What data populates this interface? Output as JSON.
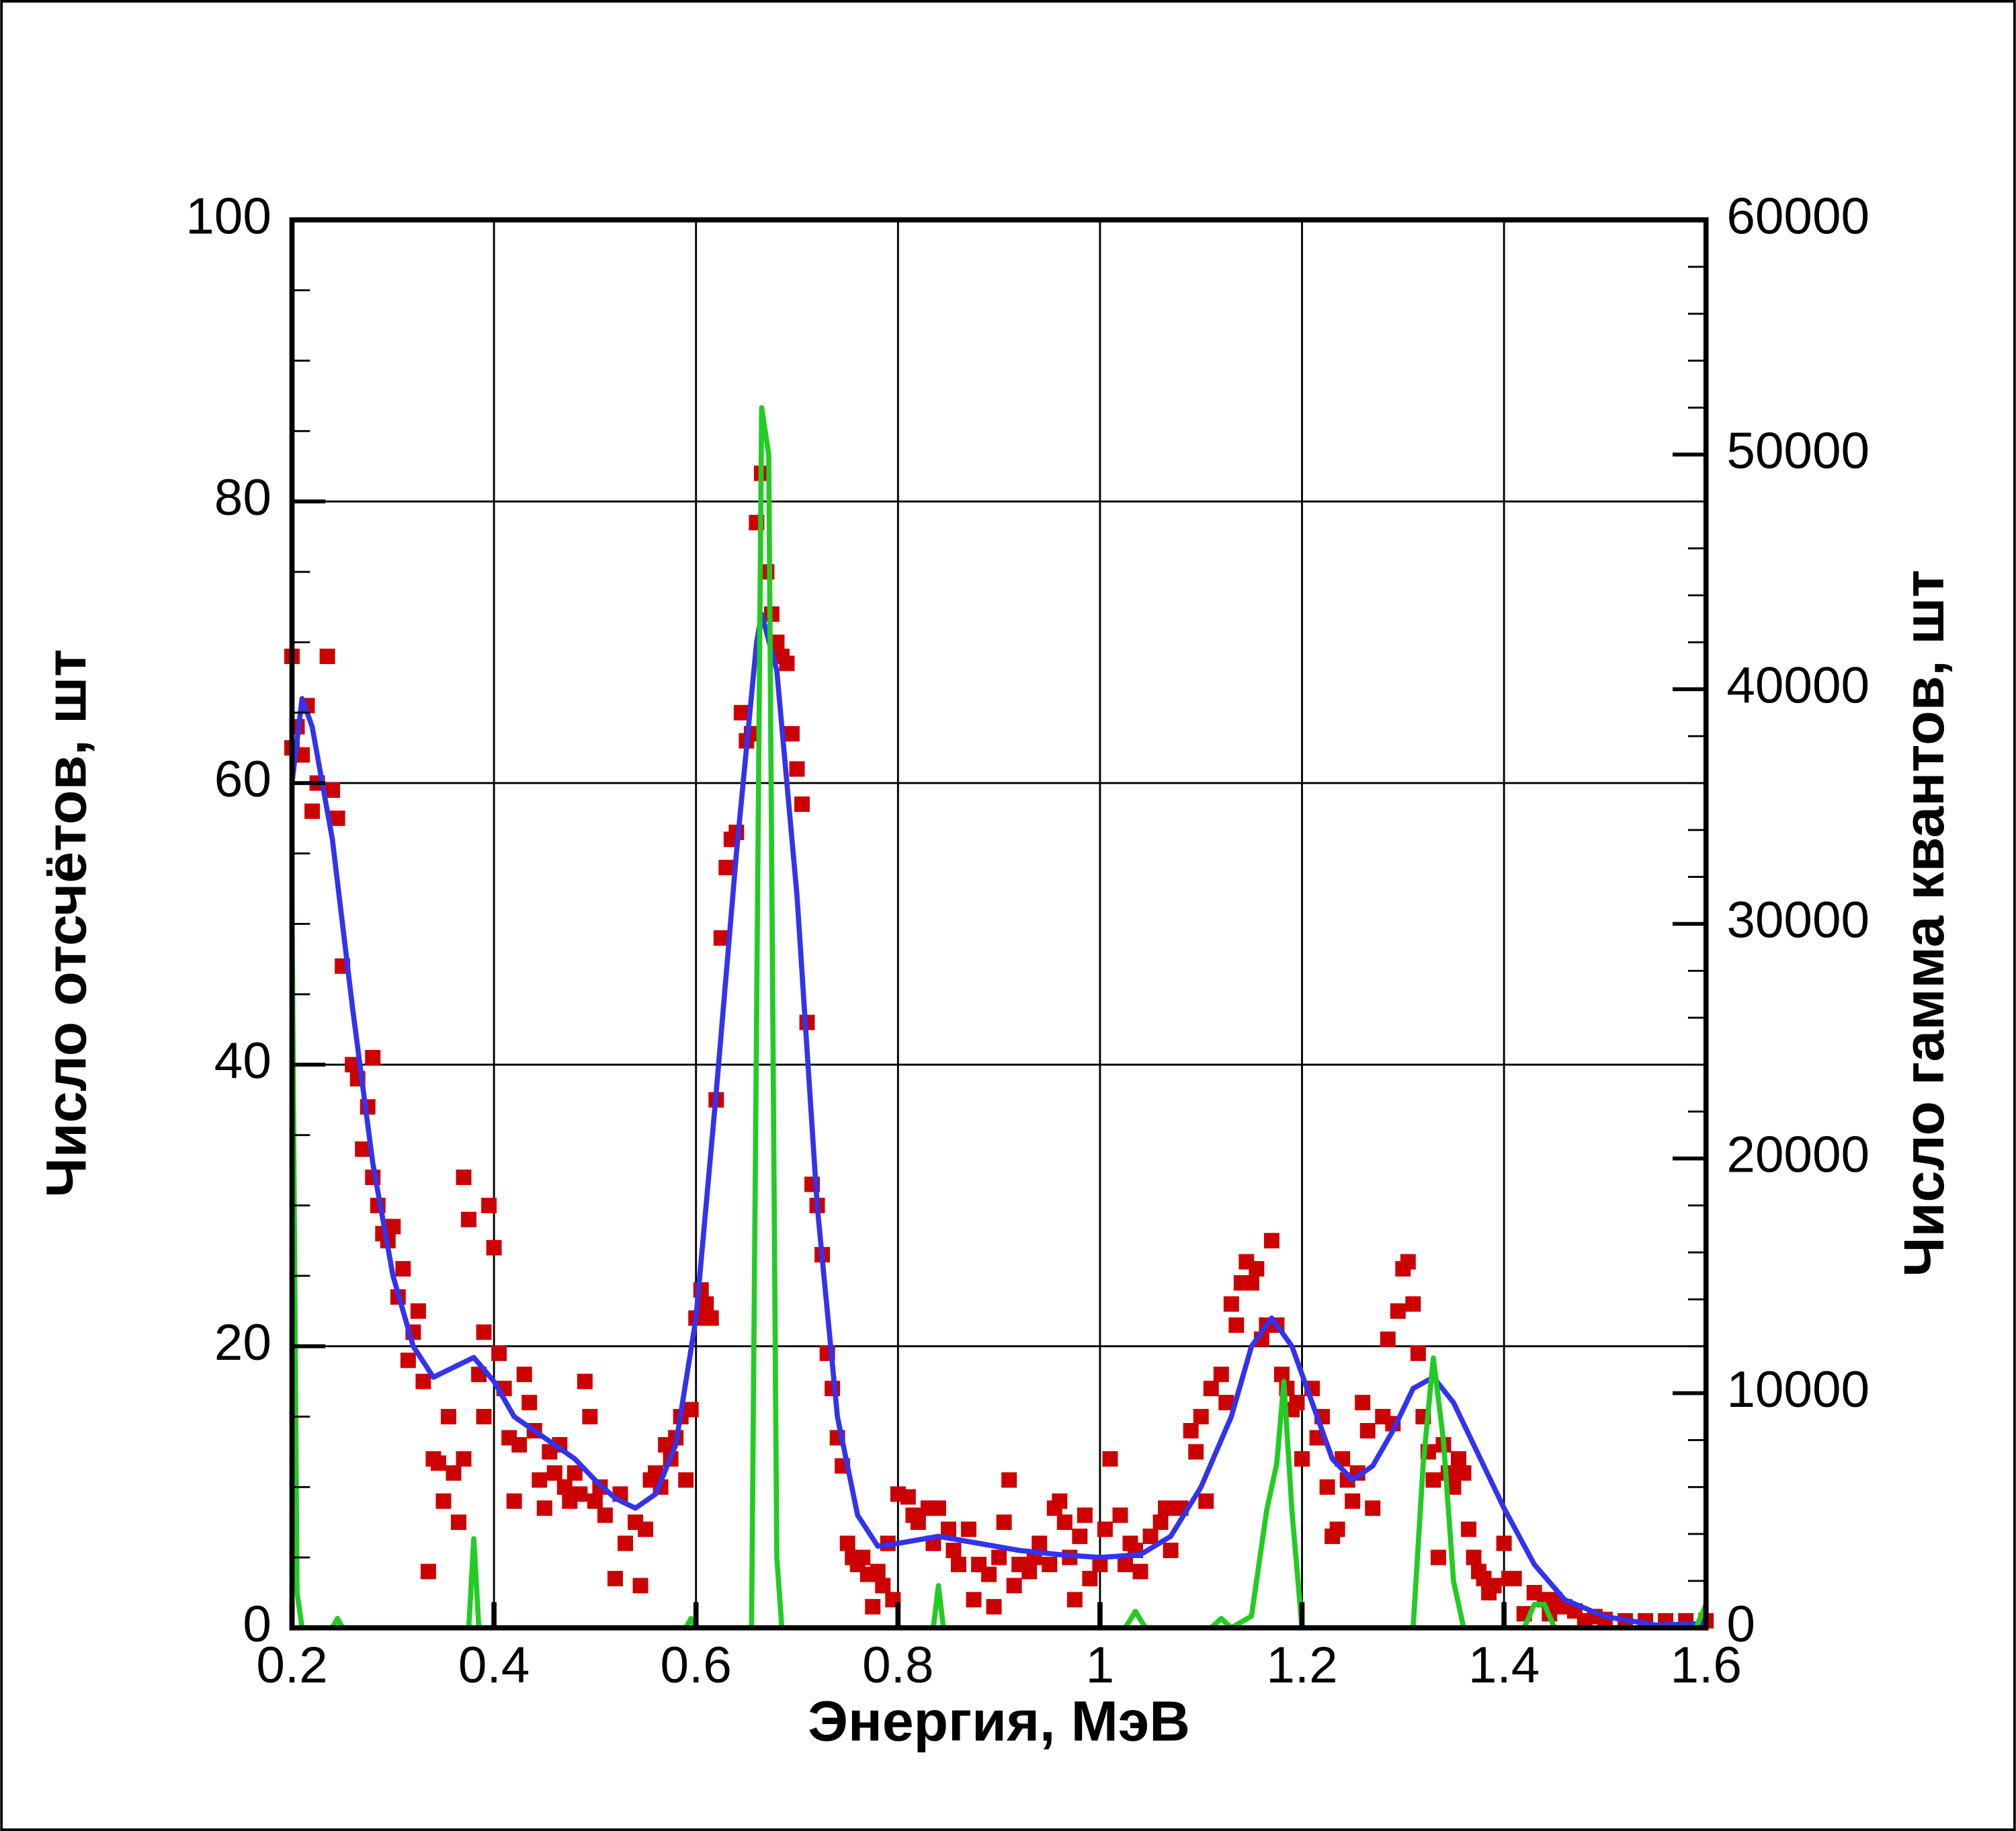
{
  "chart_data": {
    "type": "line",
    "xlabel": "Энергия, МэВ",
    "ylabel": "Число отсчётов, шт",
    "y2label": "Число гамма квантов, шт",
    "xlim": [
      0.2,
      1.6
    ],
    "xticks": [
      0.2,
      0.4,
      0.6,
      0.8,
      1,
      1.2,
      1.4,
      1.6
    ],
    "ylim": [
      0,
      100
    ],
    "yticks": [
      0,
      20,
      40,
      60,
      80,
      100
    ],
    "yminor": 5,
    "y2lim": [
      0,
      60000
    ],
    "y2ticks": [
      0,
      10000,
      20000,
      30000,
      40000,
      50000,
      60000
    ],
    "y2minor": 2000,
    "grid": true,
    "series": [
      {
        "type": "scatter",
        "color": "#cc0000",
        "x": [
          0.2,
          0.2,
          0.205,
          0.21,
          0.215,
          0.22,
          0.225,
          0.235,
          0.24,
          0.245,
          0.25,
          0.26,
          0.265,
          0.27,
          0.275,
          0.28,
          0.28,
          0.285,
          0.29,
          0.295,
          0.3,
          0.305,
          0.31,
          0.315,
          0.32,
          0.325,
          0.33,
          0.335,
          0.34,
          0.345,
          0.35,
          0.355,
          0.36,
          0.365,
          0.37,
          0.37,
          0.375,
          0.385,
          0.39,
          0.39,
          0.395,
          0.4,
          0.405,
          0.41,
          0.415,
          0.42,
          0.425,
          0.43,
          0.435,
          0.44,
          0.445,
          0.45,
          0.455,
          0.46,
          0.465,
          0.47,
          0.475,
          0.48,
          0.485,
          0.49,
          0.495,
          0.5,
          0.505,
          0.51,
          0.52,
          0.525,
          0.53,
          0.54,
          0.545,
          0.55,
          0.555,
          0.56,
          0.565,
          0.57,
          0.575,
          0.58,
          0.585,
          0.59,
          0.595,
          0.6,
          0.605,
          0.61,
          0.615,
          0.62,
          0.625,
          0.63,
          0.635,
          0.64,
          0.645,
          0.65,
          0.655,
          0.66,
          0.665,
          0.67,
          0.675,
          0.68,
          0.685,
          0.69,
          0.695,
          0.7,
          0.705,
          0.71,
          0.715,
          0.72,
          0.725,
          0.73,
          0.735,
          0.74,
          0.745,
          0.75,
          0.755,
          0.76,
          0.765,
          0.77,
          0.775,
          0.78,
          0.785,
          0.79,
          0.795,
          0.8,
          0.81,
          0.815,
          0.82,
          0.83,
          0.835,
          0.84,
          0.85,
          0.855,
          0.86,
          0.87,
          0.875,
          0.88,
          0.89,
          0.895,
          0.9,
          0.905,
          0.91,
          0.915,
          0.92,
          0.93,
          0.935,
          0.94,
          0.95,
          0.955,
          0.96,
          0.965,
          0.97,
          0.975,
          0.98,
          0.985,
          0.99,
          1.0,
          1.005,
          1.01,
          1.02,
          1.025,
          1.03,
          1.035,
          1.04,
          1.05,
          1.06,
          1.065,
          1.07,
          1.08,
          1.09,
          1.095,
          1.1,
          1.105,
          1.11,
          1.12,
          1.125,
          1.13,
          1.135,
          1.14,
          1.145,
          1.15,
          1.155,
          1.16,
          1.165,
          1.17,
          1.175,
          1.18,
          1.185,
          1.19,
          1.195,
          1.2,
          1.21,
          1.215,
          1.22,
          1.225,
          1.23,
          1.235,
          1.24,
          1.245,
          1.25,
          1.255,
          1.26,
          1.265,
          1.27,
          1.28,
          1.285,
          1.29,
          1.295,
          1.3,
          1.305,
          1.31,
          1.315,
          1.32,
          1.325,
          1.33,
          1.335,
          1.34,
          1.345,
          1.35,
          1.355,
          1.36,
          1.365,
          1.37,
          1.375,
          1.38,
          1.385,
          1.39,
          1.4,
          1.405,
          1.41,
          1.42,
          1.43,
          1.44,
          1.445,
          1.45,
          1.46,
          1.47,
          1.48,
          1.49,
          1.5,
          1.52,
          1.54,
          1.56,
          1.58,
          1.6
        ],
        "values": [
          69,
          62.5,
          64,
          62,
          65.5,
          58,
          60,
          69,
          59.5,
          57.5,
          47,
          40,
          39,
          34,
          37,
          40.5,
          32,
          30,
          28,
          27.5,
          28.5,
          23.5,
          25.5,
          19,
          21,
          22.5,
          17.5,
          4,
          12,
          11.7,
          9,
          15,
          11,
          7.5,
          12,
          32,
          29,
          18,
          21,
          15,
          30,
          27,
          19.5,
          17,
          13.5,
          9,
          13,
          18,
          16,
          14,
          10.5,
          8.5,
          12.5,
          11,
          13,
          10,
          9,
          11,
          9.5,
          17.5,
          15,
          9,
          10,
          8,
          3.5,
          9.5,
          6,
          7.5,
          3,
          7,
          10.5,
          11,
          10,
          13,
          12,
          13.5,
          15,
          10.5,
          15.5,
          22,
          24,
          23,
          22,
          37.5,
          49,
          54,
          56,
          56.5,
          65,
          63,
          63.5,
          78.5,
          82,
          75,
          72,
          70,
          69,
          68.5,
          63.5,
          61,
          58.5,
          43,
          31.5,
          30,
          26.5,
          19.5,
          17,
          13.5,
          11.5,
          6,
          5,
          4.5,
          5,
          3.8,
          1.5,
          4,
          3,
          6,
          2,
          9.5,
          9.3,
          8,
          7.5,
          8.5,
          6,
          8.5,
          7,
          5.5,
          4.5,
          7,
          2,
          4.5,
          3.8,
          1.5,
          5,
          7.5,
          10.5,
          3,
          4.5,
          4,
          5,
          6,
          4.5,
          8.5,
          9,
          7.5,
          5,
          2,
          6.5,
          8,
          3.5,
          4.5,
          7,
          12,
          8,
          4.5,
          6,
          5.5,
          4,
          6.5,
          7.5,
          8.5,
          5.5,
          8.5,
          14,
          12.5,
          15,
          9,
          17,
          18,
          16,
          23,
          21.5,
          24.5,
          26,
          24.5,
          25.5,
          20.5,
          21.5,
          27.5,
          21.5,
          18,
          17,
          15.5,
          16,
          12,
          17,
          13.5,
          15,
          10,
          6.5,
          7,
          12,
          10.5,
          9,
          11,
          16,
          14,
          8.5,
          15,
          20.5,
          14.5,
          22.5,
          25.5,
          26,
          23,
          19.5,
          15,
          12.5,
          10.5,
          5,
          13,
          11,
          10,
          12,
          11,
          7,
          5,
          4,
          3.5,
          2.5,
          3,
          6,
          3.5,
          3.5,
          1,
          2.5,
          2,
          1,
          2,
          1.5,
          1.2,
          0.5,
          0.8,
          0.6,
          0.5,
          0.5,
          0.5,
          0.5,
          0.5
        ]
      },
      {
        "type": "line",
        "color": "#3333ee",
        "x": [
          0.2,
          0.21,
          0.22,
          0.24,
          0.26,
          0.28,
          0.3,
          0.32,
          0.34,
          0.36,
          0.38,
          0.4,
          0.42,
          0.45,
          0.48,
          0.5,
          0.52,
          0.54,
          0.56,
          0.58,
          0.6,
          0.62,
          0.64,
          0.66,
          0.665,
          0.68,
          0.7,
          0.72,
          0.74,
          0.76,
          0.78,
          0.8,
          0.84,
          0.88,
          0.92,
          0.96,
          1.0,
          1.04,
          1.07,
          1.1,
          1.13,
          1.15,
          1.17,
          1.19,
          1.21,
          1.23,
          1.25,
          1.27,
          1.29,
          1.31,
          1.33,
          1.35,
          1.37,
          1.4,
          1.43,
          1.46,
          1.5,
          1.55,
          1.6
        ],
        "values": [
          60,
          66,
          64,
          56,
          44,
          33,
          25,
          20,
          17.8,
          18.5,
          19.2,
          17.5,
          15,
          13.5,
          12,
          10.5,
          9.2,
          8.5,
          9.5,
          13,
          22,
          38,
          55,
          70,
          72,
          68,
          52,
          30,
          15,
          8,
          5.8,
          6,
          6.5,
          6,
          5.5,
          5.2,
          5,
          5.2,
          6.5,
          10,
          15,
          20,
          22,
          20,
          16,
          12,
          10.5,
          11.5,
          14,
          17,
          17.8,
          16,
          13,
          8.5,
          4.5,
          2,
          0.8,
          0.2,
          0.3
        ]
      },
      {
        "type": "line",
        "axis": "y2",
        "color": "#22cc22",
        "x": [
          0.2,
          0.205,
          0.21,
          0.24,
          0.245,
          0.25,
          0.375,
          0.38,
          0.385,
          0.59,
          0.595,
          0.6,
          0.655,
          0.665,
          0.672,
          0.68,
          0.685,
          0.835,
          0.84,
          0.845,
          1.025,
          1.035,
          1.045,
          1.11,
          1.12,
          1.13,
          1.15,
          1.165,
          1.175,
          1.182,
          1.19,
          1.2,
          1.31,
          1.32,
          1.33,
          1.34,
          1.35,
          1.36,
          1.42,
          1.43,
          1.44,
          1.45,
          1.59,
          1.6
        ],
        "values": [
          31000,
          1500,
          0,
          0,
          400,
          0,
          0,
          3800,
          0,
          0,
          400,
          0,
          0,
          52000,
          50000,
          3000,
          0,
          0,
          1800,
          0,
          0,
          700,
          0,
          0,
          400,
          0,
          500,
          5000,
          7000,
          10500,
          5000,
          0,
          0,
          7000,
          11500,
          8000,
          2000,
          0,
          0,
          1000,
          1000,
          0,
          0,
          1000
        ]
      }
    ]
  }
}
